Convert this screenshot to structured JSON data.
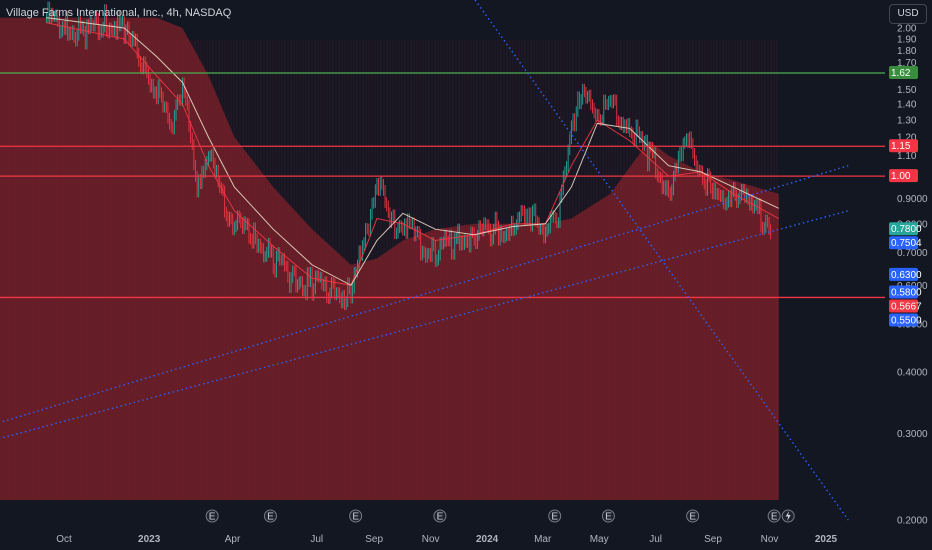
{
  "header": {
    "symbol_name": "Village Farms International, Inc.,",
    "interval": "4h,",
    "exchange": "NASDAQ",
    "currency": "USD"
  },
  "chart_data": {
    "type": "line",
    "x_ticks": [
      "Oct",
      "2023",
      "Apr",
      "Jul",
      "Sep",
      "Nov",
      "2024",
      "Mar",
      "May",
      "Jul",
      "Sep",
      "Nov",
      "2025"
    ],
    "y_ticks": [
      "2.00",
      "1.90",
      "1.80",
      "1.70",
      "1.60",
      "1.50",
      "1.40",
      "1.30",
      "1.20",
      "1.10",
      "1.00",
      "0.9000",
      "0.8000",
      "0.7000",
      "0.6000",
      "0.5000",
      "0.4000",
      "0.3000",
      "0.2000"
    ],
    "y_scale": "log",
    "ylim": [
      0.19,
      2.05
    ],
    "series": [
      {
        "kind": "price",
        "x": [
          "2022-09-12",
          "2022-10-03",
          "2022-10-24",
          "2022-11-14",
          "2022-12-05",
          "2022-12-26",
          "2023-01-09",
          "2023-01-23",
          "2023-02-06",
          "2023-02-20",
          "2023-03-06",
          "2023-03-20",
          "2023-04-03",
          "2023-04-24",
          "2023-05-15",
          "2023-06-05",
          "2023-06-26",
          "2023-07-17",
          "2023-08-07",
          "2023-08-21",
          "2023-09-04",
          "2023-09-18",
          "2023-10-02",
          "2023-10-16",
          "2023-11-06",
          "2023-11-27",
          "2023-12-18",
          "2024-01-08",
          "2024-01-29",
          "2024-02-19",
          "2024-03-04",
          "2024-03-18",
          "2024-04-01",
          "2024-04-15",
          "2024-04-29",
          "2024-05-13",
          "2024-06-03",
          "2024-06-24",
          "2024-07-15",
          "2024-08-05",
          "2024-08-19",
          "2024-09-02",
          "2024-09-23",
          "2024-10-14",
          "2024-11-04",
          "2024-11-11"
        ],
        "y": [
          2.1,
          2.0,
          1.95,
          2.1,
          1.95,
          1.7,
          1.5,
          1.25,
          1.55,
          0.95,
          1.1,
          0.9,
          0.8,
          0.75,
          0.68,
          0.62,
          0.6,
          0.58,
          0.58,
          0.72,
          0.98,
          0.8,
          0.82,
          0.74,
          0.7,
          0.74,
          0.76,
          0.78,
          0.8,
          0.82,
          0.78,
          0.8,
          1.3,
          1.45,
          1.35,
          1.4,
          1.25,
          1.1,
          0.95,
          1.15,
          1.05,
          0.9,
          0.95,
          0.85,
          0.8,
          0.78
        ]
      },
      {
        "kind": "moving-average-short",
        "x": [
          "2022-09-12",
          "2022-12-05",
          "2023-01-09",
          "2023-02-06",
          "2023-03-06",
          "2023-04-03",
          "2023-05-15",
          "2023-06-26",
          "2023-08-07",
          "2023-09-04",
          "2023-10-02",
          "2023-11-06",
          "2023-12-18",
          "2024-01-29",
          "2024-03-04",
          "2024-04-01",
          "2024-04-29",
          "2024-06-03",
          "2024-07-15",
          "2024-08-19",
          "2024-09-23",
          "2024-11-11"
        ],
        "y": [
          2.05,
          1.9,
          1.6,
          1.4,
          1.05,
          0.85,
          0.72,
          0.62,
          0.6,
          0.82,
          0.8,
          0.74,
          0.76,
          0.8,
          0.8,
          1.05,
          1.3,
          1.18,
          1.0,
          1.02,
          0.92,
          0.82
        ]
      },
      {
        "kind": "moving-average-long",
        "x": [
          "2022-09-12",
          "2022-12-05",
          "2023-01-09",
          "2023-02-06",
          "2023-03-06",
          "2023-04-03",
          "2023-05-15",
          "2023-06-26",
          "2023-08-07",
          "2023-09-04",
          "2023-10-02",
          "2023-11-06",
          "2023-12-18",
          "2024-01-29",
          "2024-03-04",
          "2024-04-01",
          "2024-04-29",
          "2024-06-03",
          "2024-07-15",
          "2024-08-19",
          "2024-09-23",
          "2024-11-11"
        ],
        "y": [
          2.1,
          2.0,
          1.75,
          1.55,
          1.2,
          0.95,
          0.78,
          0.66,
          0.6,
          0.74,
          0.84,
          0.78,
          0.76,
          0.79,
          0.8,
          0.95,
          1.28,
          1.25,
          1.05,
          1.02,
          0.95,
          0.86
        ]
      },
      {
        "kind": "shaded-band",
        "x": [
          "2022-09-12",
          "2022-12-05",
          "2023-01-09",
          "2023-02-06",
          "2023-03-06",
          "2023-04-03",
          "2023-05-15",
          "2023-06-26",
          "2023-08-07",
          "2023-09-04",
          "2023-10-02",
          "2023-11-06",
          "2023-12-18",
          "2024-01-29",
          "2024-03-04",
          "2024-04-01",
          "2024-05-13",
          "2024-06-24",
          "2024-07-15",
          "2024-08-19",
          "2024-09-23",
          "2024-11-11"
        ],
        "y": [
          2.1,
          2.1,
          2.1,
          2.0,
          1.6,
          1.2,
          0.95,
          0.78,
          0.66,
          0.68,
          0.74,
          0.78,
          0.8,
          0.8,
          0.8,
          0.82,
          0.92,
          1.18,
          1.1,
          1.02,
          0.98,
          0.92
        ]
      }
    ],
    "horizontal_lines": [
      {
        "value": 1.62,
        "color": "#4caf50"
      },
      {
        "value": 1.15,
        "color": "#f23645"
      },
      {
        "value": 1.0,
        "color": "#f23645"
      },
      {
        "value": 0.5667,
        "color": "#f23645"
      }
    ],
    "trend_lines": [
      {
        "from": {
          "x": "2022-06-15",
          "y": 0.3
        },
        "to": {
          "x": "2025-01-25",
          "y": 1.05
        }
      },
      {
        "from": {
          "x": "2022-06-15",
          "y": 0.28
        },
        "to": {
          "x": "2025-01-25",
          "y": 0.85
        }
      },
      {
        "from": {
          "x": "2023-11-15",
          "y": 2.8
        },
        "to": {
          "x": "2025-01-25",
          "y": 0.2
        }
      }
    ],
    "price_labels": [
      {
        "text": "1.62",
        "value": 1.62,
        "color": "#388e3c"
      },
      {
        "text": "1.15",
        "value": 1.15,
        "color": "#f23645"
      },
      {
        "text": "1.00",
        "value": 1.0,
        "color": "#f23645"
      },
      {
        "text": "0.7800",
        "value": 0.78,
        "color": "#26a69a"
      },
      {
        "text": "0.7504",
        "value": 0.7504,
        "color": "#2962ff"
      },
      {
        "text": "0.6300",
        "value": 0.63,
        "color": "#2962ff"
      },
      {
        "text": "0.5800",
        "value": 0.58,
        "color": "#2962ff"
      },
      {
        "text": "0.5667",
        "value": 0.5667,
        "color": "#f23645"
      },
      {
        "text": "0.5500",
        "value": 0.55,
        "color": "#2962ff"
      }
    ],
    "event_markers": [
      {
        "label": "E",
        "x": "2023-03-10"
      },
      {
        "label": "E",
        "x": "2023-05-12"
      },
      {
        "label": "E",
        "x": "2023-08-12"
      },
      {
        "label": "E",
        "x": "2023-11-11"
      },
      {
        "label": "E",
        "x": "2024-03-14"
      },
      {
        "label": "E",
        "x": "2024-05-11"
      },
      {
        "label": "E",
        "x": "2024-08-10"
      },
      {
        "label": "E",
        "x": "2024-11-06"
      }
    ]
  }
}
